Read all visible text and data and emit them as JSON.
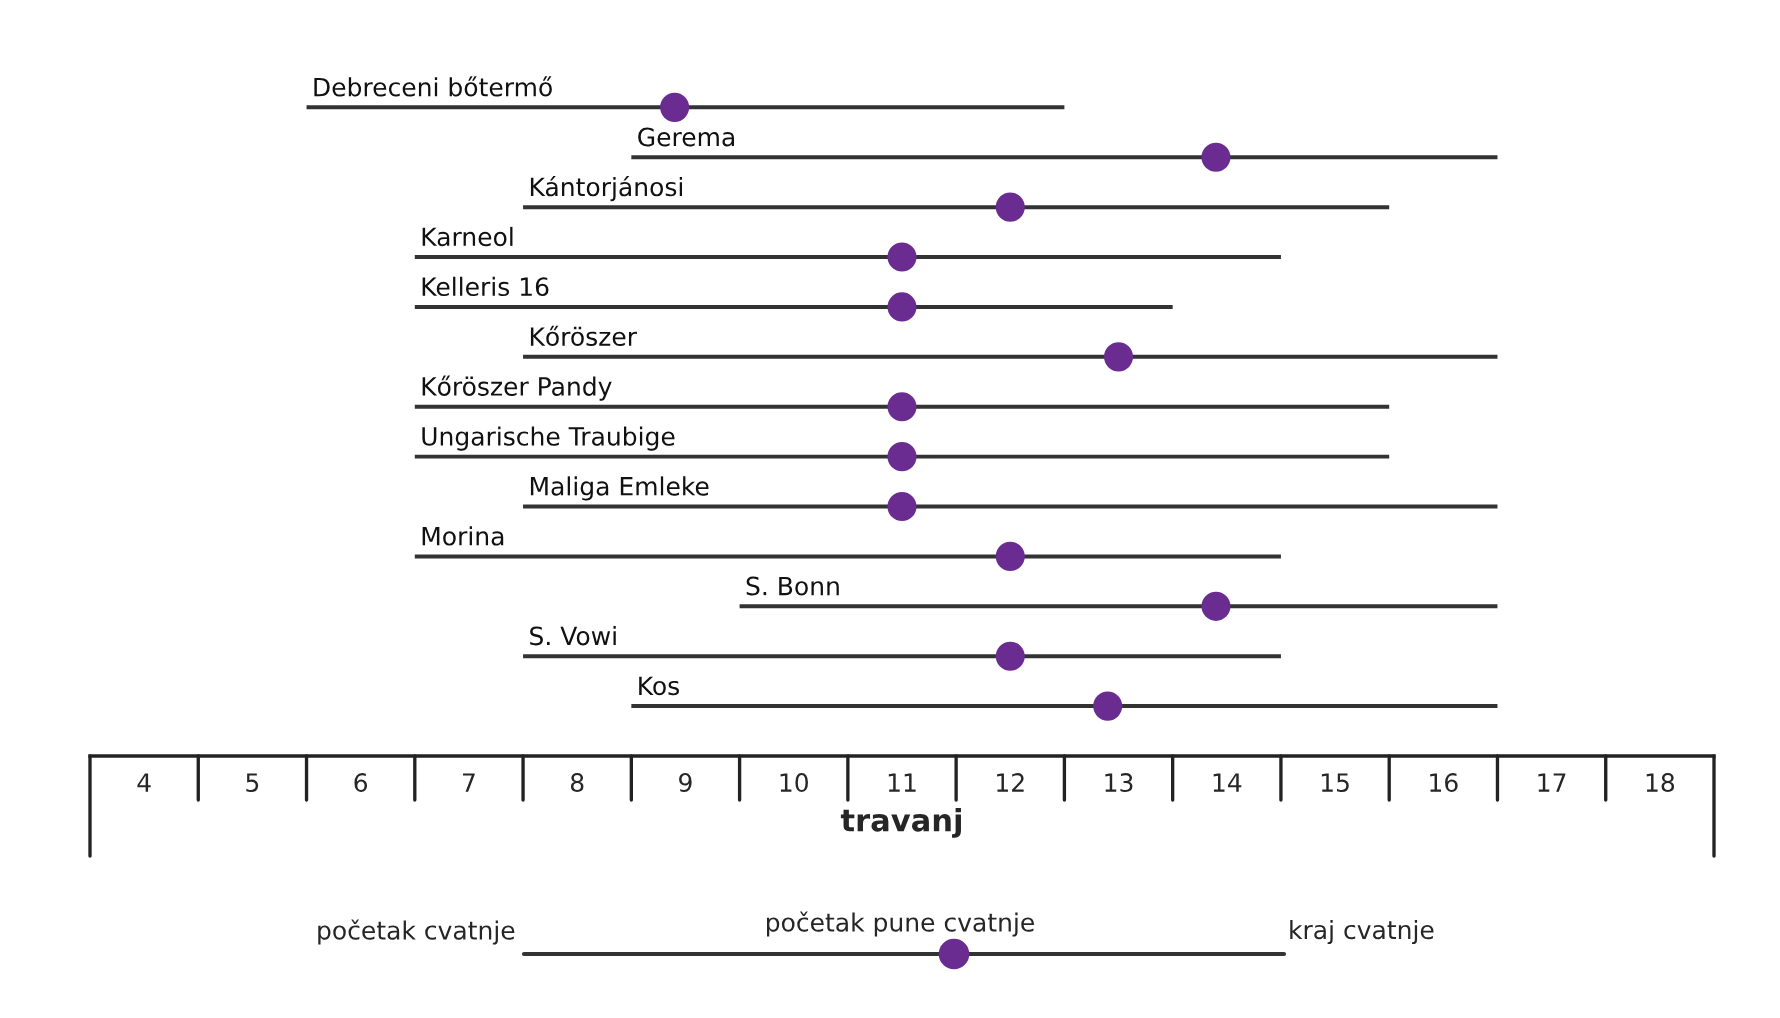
{
  "chart_data": {
    "type": "bar",
    "orientation": "horizontal",
    "xlabel": "travanj",
    "categories": [
      "Debreceni bőtermő",
      "Gerema",
      "Kántorjánosi",
      "Karneol",
      "Kelleris 16",
      "Kőröszer",
      "Kőröszer Pandy",
      "Ungarische Traubige",
      "Maliga Emleke",
      "Morina",
      "S. Bonn",
      "S. Vowi",
      "Kos"
    ],
    "series": [
      {
        "type": "bar",
        "base": [
          5.5,
          8.5,
          7.5,
          6.5,
          6.5,
          7.5,
          6.5,
          6.5,
          7.5,
          6.5,
          9.5,
          7.5,
          8.5
        ],
        "color": "#333333",
        "values": [
          7.0,
          8.0,
          8.0,
          8.0,
          7.0,
          9.0,
          9.0,
          9.0,
          9.0,
          8.0,
          7.0,
          7.0,
          8.0
        ]
      },
      {
        "type": "scatter",
        "color": "#6a2c91",
        "marker": "circle",
        "values": [
          8.9,
          13.9,
          12.0,
          11.0,
          11.0,
          13.0,
          11.0,
          11.0,
          11.0,
          12.0,
          13.9,
          12.0,
          12.9
        ]
      }
    ],
    "xlim": [
      3.5,
      18.5
    ],
    "xticks": [
      4,
      5,
      6,
      7,
      8,
      9,
      10,
      11,
      12,
      13,
      14,
      15,
      16,
      17,
      18
    ],
    "tick_labels": "x",
    "grid": false,
    "legend": false,
    "annotations": [
      "početak cvatnje",
      "početak pune cvatnje",
      "kraj cvatnje"
    ]
  }
}
